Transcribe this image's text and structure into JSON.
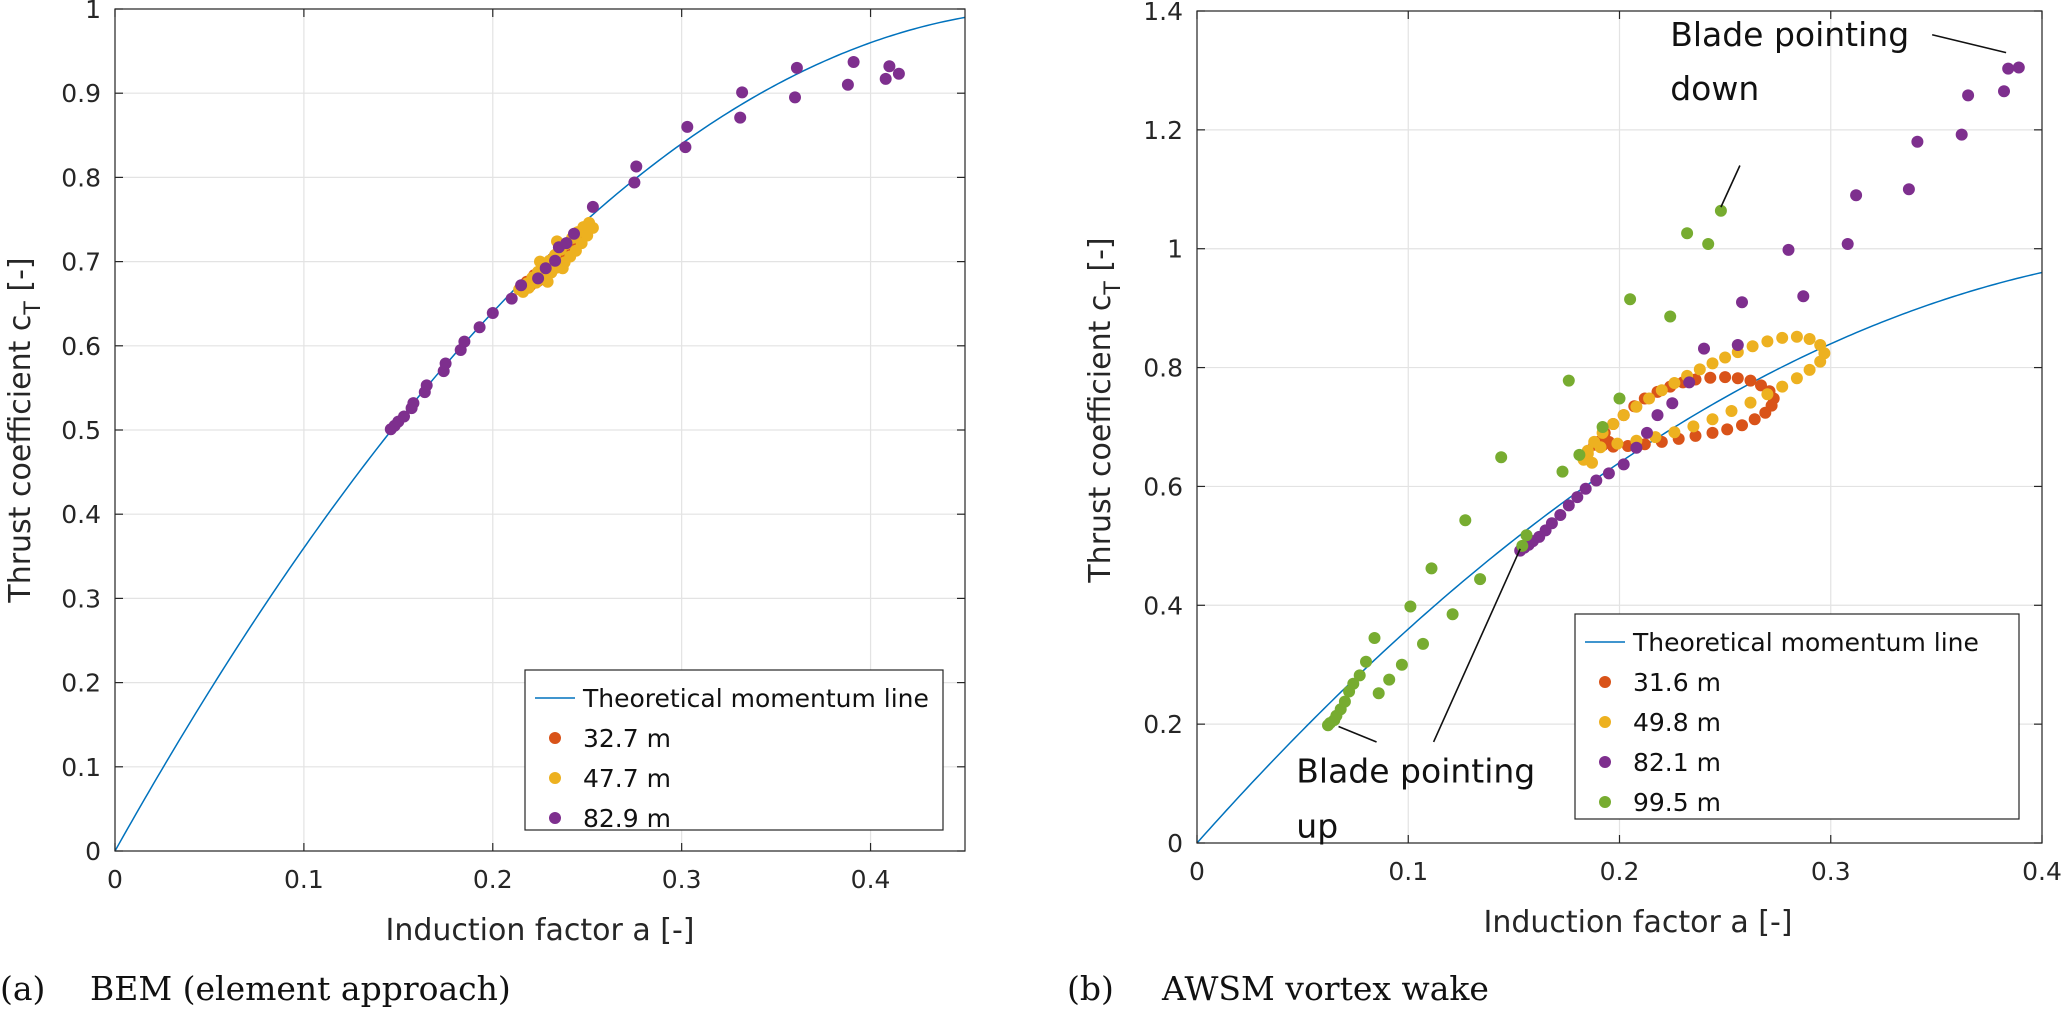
{
  "chart_data": [
    {
      "type": "scatter",
      "panel_label": "(a)",
      "caption": "BEM (element approach)",
      "xlabel": "Induction factor a [-]",
      "ylabel_main": "Thrust coefficient c",
      "ylabel_sub": "T",
      "ylabel_unit": " [-]",
      "xlim": [
        0,
        0.45
      ],
      "ylim": [
        0,
        1
      ],
      "xticks": [
        0,
        0.1,
        0.2,
        0.3,
        0.4
      ],
      "xtick_labels": [
        "0",
        "0.1",
        "0.2",
        "0.3",
        "0.4"
      ],
      "yticks": [
        0,
        0.1,
        0.2,
        0.3,
        0.4,
        0.5,
        0.6,
        0.7,
        0.8,
        0.9,
        1
      ],
      "ytick_labels": [
        "0",
        "0.1",
        "0.2",
        "0.3",
        "0.4",
        "0.5",
        "0.6",
        "0.7",
        "0.8",
        "0.9",
        "1"
      ],
      "grid": true,
      "legend_position": "bottom-right",
      "line": {
        "name": "Theoretical momentum line",
        "formula": "4a(1-a)",
        "color": "#0072BD"
      },
      "series": [
        {
          "name": "32.7 m",
          "color": "#D95319",
          "points": [
            [
              0.218,
              0.676
            ],
            [
              0.222,
              0.684
            ],
            [
              0.226,
              0.692
            ],
            [
              0.229,
              0.698
            ],
            [
              0.232,
              0.704
            ],
            [
              0.235,
              0.711
            ],
            [
              0.238,
              0.717
            ],
            [
              0.241,
              0.724
            ],
            [
              0.244,
              0.729
            ],
            [
              0.246,
              0.722
            ],
            [
              0.243,
              0.713
            ],
            [
              0.239,
              0.705
            ],
            [
              0.236,
              0.698
            ],
            [
              0.232,
              0.691
            ],
            [
              0.228,
              0.684
            ],
            [
              0.224,
              0.677
            ],
            [
              0.22,
              0.672
            ]
          ]
        },
        {
          "name": "47.7 m",
          "color": "#EDB120",
          "points": [
            [
              0.214,
              0.667
            ],
            [
              0.218,
              0.674
            ],
            [
              0.221,
              0.681
            ],
            [
              0.224,
              0.688
            ],
            [
              0.227,
              0.694
            ],
            [
              0.23,
              0.701
            ],
            [
              0.233,
              0.708
            ],
            [
              0.236,
              0.714
            ],
            [
              0.239,
              0.721
            ],
            [
              0.242,
              0.728
            ],
            [
              0.245,
              0.735
            ],
            [
              0.248,
              0.741
            ],
            [
              0.251,
              0.746
            ],
            [
              0.253,
              0.74
            ],
            [
              0.25,
              0.731
            ],
            [
              0.247,
              0.722
            ],
            [
              0.244,
              0.713
            ],
            [
              0.241,
              0.706
            ],
            [
              0.238,
              0.699
            ],
            [
              0.234,
              0.693
            ],
            [
              0.231,
              0.687
            ],
            [
              0.227,
              0.681
            ],
            [
              0.223,
              0.675
            ],
            [
              0.219,
              0.669
            ],
            [
              0.216,
              0.664
            ],
            [
              0.229,
              0.676
            ],
            [
              0.237,
              0.692
            ],
            [
              0.225,
              0.7
            ],
            [
              0.234,
              0.724
            ]
          ]
        },
        {
          "name": "82.9 m",
          "color": "#7E2F8E",
          "points": [
            [
              0.146,
              0.501
            ],
            [
              0.148,
              0.505
            ],
            [
              0.15,
              0.51
            ],
            [
              0.153,
              0.516
            ],
            [
              0.157,
              0.526
            ],
            [
              0.158,
              0.532
            ],
            [
              0.164,
              0.545
            ],
            [
              0.165,
              0.553
            ],
            [
              0.174,
              0.57
            ],
            [
              0.175,
              0.579
            ],
            [
              0.183,
              0.595
            ],
            [
              0.185,
              0.605
            ],
            [
              0.193,
              0.622
            ],
            [
              0.2,
              0.639
            ],
            [
              0.21,
              0.656
            ],
            [
              0.215,
              0.672
            ],
            [
              0.224,
              0.68
            ],
            [
              0.228,
              0.692
            ],
            [
              0.233,
              0.701
            ],
            [
              0.235,
              0.717
            ],
            [
              0.239,
              0.722
            ],
            [
              0.243,
              0.733
            ],
            [
              0.253,
              0.765
            ],
            [
              0.275,
              0.794
            ],
            [
              0.276,
              0.813
            ],
            [
              0.302,
              0.836
            ],
            [
              0.303,
              0.86
            ],
            [
              0.331,
              0.871
            ],
            [
              0.332,
              0.901
            ],
            [
              0.36,
              0.895
            ],
            [
              0.361,
              0.93
            ],
            [
              0.388,
              0.91
            ],
            [
              0.391,
              0.937
            ],
            [
              0.408,
              0.917
            ],
            [
              0.41,
              0.932
            ],
            [
              0.415,
              0.923
            ]
          ]
        }
      ]
    },
    {
      "type": "scatter",
      "panel_label": "(b)",
      "caption": "AWSM vortex wake",
      "xlabel": "Induction factor a [-]",
      "ylabel_main": "Thrust coefficient c",
      "ylabel_sub": "T",
      "ylabel_unit": " [-]",
      "xlim": [
        0,
        0.4
      ],
      "ylim": [
        0,
        1.4
      ],
      "xticks": [
        0,
        0.1,
        0.2,
        0.3,
        0.4
      ],
      "xtick_labels": [
        "0",
        "0.1",
        "0.2",
        "0.3",
        "0.4"
      ],
      "yticks": [
        0,
        0.2,
        0.4,
        0.6,
        0.8,
        1,
        1.2,
        1.4
      ],
      "ytick_labels": [
        "0",
        "0.2",
        "0.4",
        "0.6",
        "0.8",
        "1",
        "1.2",
        "1.4"
      ],
      "grid": true,
      "legend_position": "bottom-right",
      "line": {
        "name": "Theoretical momentum line",
        "formula": "4a(1-a)",
        "color": "#0072BD"
      },
      "annotations": [
        {
          "lines": [
            "Blade pointing",
            "down"
          ],
          "text_at": [
            0.224,
            1.36
          ],
          "arrow_from": [
            0.348,
            1.36
          ],
          "arrow_to": [
            0.383,
            1.33
          ],
          "leader_from": [
            0.257,
            1.14
          ],
          "leader_to": [
            0.248,
            1.07
          ]
        },
        {
          "lines": [
            "Blade pointing",
            "up"
          ],
          "text_at": [
            0.047,
            0.12
          ],
          "leader_a_from": [
            0.085,
            0.17
          ],
          "leader_a_to": [
            0.067,
            0.196
          ],
          "leader_b_from": [
            0.112,
            0.17
          ],
          "leader_b_to": [
            0.153,
            0.495
          ]
        }
      ],
      "series": [
        {
          "name": "31.6 m",
          "color": "#D95319",
          "points": [
            [
              0.19,
              0.675
            ],
            [
              0.193,
              0.69
            ],
            [
              0.197,
              0.705
            ],
            [
              0.202,
              0.72
            ],
            [
              0.207,
              0.735
            ],
            [
              0.212,
              0.748
            ],
            [
              0.218,
              0.759
            ],
            [
              0.224,
              0.768
            ],
            [
              0.23,
              0.775
            ],
            [
              0.236,
              0.78
            ],
            [
              0.243,
              0.783
            ],
            [
              0.25,
              0.784
            ],
            [
              0.256,
              0.782
            ],
            [
              0.262,
              0.778
            ],
            [
              0.267,
              0.77
            ],
            [
              0.271,
              0.76
            ],
            [
              0.273,
              0.748
            ],
            [
              0.272,
              0.736
            ],
            [
              0.269,
              0.724
            ],
            [
              0.264,
              0.713
            ],
            [
              0.258,
              0.703
            ],
            [
              0.251,
              0.696
            ],
            [
              0.244,
              0.69
            ],
            [
              0.236,
              0.685
            ],
            [
              0.228,
              0.68
            ],
            [
              0.22,
              0.675
            ],
            [
              0.212,
              0.671
            ],
            [
              0.204,
              0.668
            ],
            [
              0.197,
              0.667
            ],
            [
              0.192,
              0.669
            ],
            [
              0.188,
              0.67
            ],
            [
              0.195,
              0.675
            ]
          ]
        },
        {
          "name": "49.8 m",
          "color": "#EDB120",
          "points": [
            [
              0.183,
              0.645
            ],
            [
              0.185,
              0.66
            ],
            [
              0.188,
              0.675
            ],
            [
              0.192,
              0.69
            ],
            [
              0.197,
              0.705
            ],
            [
              0.202,
              0.72
            ],
            [
              0.208,
              0.734
            ],
            [
              0.214,
              0.748
            ],
            [
              0.22,
              0.762
            ],
            [
              0.226,
              0.774
            ],
            [
              0.232,
              0.786
            ],
            [
              0.238,
              0.797
            ],
            [
              0.244,
              0.807
            ],
            [
              0.25,
              0.817
            ],
            [
              0.256,
              0.826
            ],
            [
              0.263,
              0.836
            ],
            [
              0.27,
              0.844
            ],
            [
              0.277,
              0.85
            ],
            [
              0.284,
              0.852
            ],
            [
              0.29,
              0.848
            ],
            [
              0.295,
              0.838
            ],
            [
              0.297,
              0.824
            ],
            [
              0.295,
              0.81
            ],
            [
              0.29,
              0.796
            ],
            [
              0.284,
              0.782
            ],
            [
              0.277,
              0.768
            ],
            [
              0.27,
              0.755
            ],
            [
              0.262,
              0.741
            ],
            [
              0.253,
              0.727
            ],
            [
              0.244,
              0.713
            ],
            [
              0.235,
              0.701
            ],
            [
              0.226,
              0.691
            ],
            [
              0.217,
              0.683
            ],
            [
              0.208,
              0.677
            ],
            [
              0.199,
              0.672
            ],
            [
              0.191,
              0.666
            ],
            [
              0.185,
              0.655
            ],
            [
              0.187,
              0.64
            ]
          ]
        },
        {
          "name": "82.1 m",
          "color": "#7E2F8E",
          "points": [
            [
              0.153,
              0.492
            ],
            [
              0.155,
              0.497
            ],
            [
              0.157,
              0.502
            ],
            [
              0.159,
              0.508
            ],
            [
              0.162,
              0.515
            ],
            [
              0.165,
              0.526
            ],
            [
              0.168,
              0.538
            ],
            [
              0.172,
              0.552
            ],
            [
              0.176,
              0.568
            ],
            [
              0.18,
              0.582
            ],
            [
              0.184,
              0.596
            ],
            [
              0.189,
              0.61
            ],
            [
              0.195,
              0.622
            ],
            [
              0.202,
              0.637
            ],
            [
              0.208,
              0.665
            ],
            [
              0.213,
              0.69
            ],
            [
              0.218,
              0.72
            ],
            [
              0.225,
              0.74
            ],
            [
              0.233,
              0.775
            ],
            [
              0.24,
              0.832
            ],
            [
              0.256,
              0.838
            ],
            [
              0.258,
              0.91
            ],
            [
              0.28,
              0.998
            ],
            [
              0.287,
              0.92
            ],
            [
              0.308,
              1.008
            ],
            [
              0.312,
              1.09
            ],
            [
              0.337,
              1.1
            ],
            [
              0.341,
              1.18
            ],
            [
              0.362,
              1.192
            ],
            [
              0.365,
              1.258
            ],
            [
              0.382,
              1.265
            ],
            [
              0.384,
              1.303
            ],
            [
              0.389,
              1.305
            ]
          ]
        },
        {
          "name": "99.5 m",
          "color": "#77AC30",
          "points": [
            [
              0.062,
              0.198
            ],
            [
              0.063,
              0.202
            ],
            [
              0.065,
              0.207
            ],
            [
              0.066,
              0.214
            ],
            [
              0.068,
              0.225
            ],
            [
              0.07,
              0.238
            ],
            [
              0.072,
              0.255
            ],
            [
              0.074,
              0.268
            ],
            [
              0.077,
              0.282
            ],
            [
              0.08,
              0.305
            ],
            [
              0.084,
              0.345
            ],
            [
              0.086,
              0.252
            ],
            [
              0.091,
              0.275
            ],
            [
              0.097,
              0.3
            ],
            [
              0.101,
              0.398
            ],
            [
              0.107,
              0.335
            ],
            [
              0.111,
              0.462
            ],
            [
              0.121,
              0.385
            ],
            [
              0.127,
              0.543
            ],
            [
              0.134,
              0.444
            ],
            [
              0.144,
              0.649
            ],
            [
              0.154,
              0.5
            ],
            [
              0.156,
              0.518
            ],
            [
              0.173,
              0.625
            ],
            [
              0.176,
              0.778
            ],
            [
              0.181,
              0.653
            ],
            [
              0.192,
              0.7
            ],
            [
              0.2,
              0.748
            ],
            [
              0.205,
              0.915
            ],
            [
              0.224,
              0.886
            ],
            [
              0.232,
              1.026
            ],
            [
              0.242,
              1.008
            ],
            [
              0.248,
              1.064
            ]
          ]
        }
      ]
    }
  ]
}
